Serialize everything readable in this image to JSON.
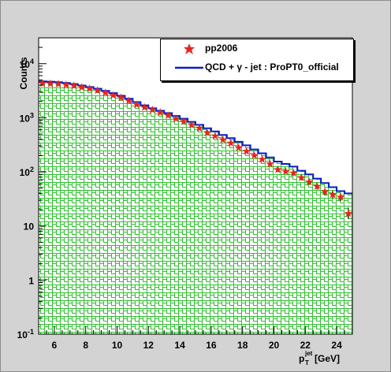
{
  "chart_data": {
    "type": "line",
    "ylabel": "Counts",
    "ylim": [
      0.1,
      30000
    ],
    "yscale": "log",
    "xlim": [
      5,
      25
    ],
    "grid": false,
    "legend_position": "top-right",
    "x_ticks": [
      "6",
      "8",
      "10",
      "12",
      "14",
      "16",
      "18",
      "20",
      "22",
      "24"
    ],
    "y_ticks": [
      {
        "base": "10",
        "exp": "4",
        "value": 10000
      },
      {
        "base": "10",
        "exp": "3",
        "value": 1000
      },
      {
        "base": "10",
        "exp": "2",
        "value": 100
      },
      {
        "base": "10",
        "exp": "",
        "value": 10
      },
      {
        "base": "1",
        "exp": "",
        "value": 1
      },
      {
        "base": "10",
        "exp": "-1",
        "value": 0.1
      }
    ],
    "series": [
      {
        "name": "pp2006",
        "style": "markers",
        "color": "#e8241f",
        "x": [
          5.25,
          5.75,
          6.25,
          6.75,
          7.25,
          7.75,
          8.25,
          8.75,
          9.25,
          9.75,
          10.25,
          10.75,
          11.25,
          11.75,
          12.25,
          12.75,
          13.25,
          13.75,
          14.25,
          14.75,
          15.25,
          15.75,
          16.25,
          16.75,
          17.25,
          17.75,
          18.25,
          18.75,
          19.25,
          19.75,
          20.25,
          20.75,
          21.25,
          21.75,
          22.25,
          22.75,
          23.25,
          23.75,
          24.25,
          24.75
        ],
        "y": [
          4300,
          4250,
          4200,
          4050,
          3900,
          3650,
          3450,
          3200,
          2900,
          2600,
          2350,
          2050,
          1750,
          1550,
          1400,
          1250,
          1100,
          960,
          850,
          740,
          640,
          530,
          460,
          390,
          340,
          280,
          240,
          200,
          170,
          140,
          110,
          102,
          95,
          78,
          65,
          54,
          43,
          38,
          34,
          17
        ]
      },
      {
        "name": "QCD + γ - jet : ProPT0_official",
        "style": "step",
        "color": "#0b1bc7",
        "x": [
          5,
          5.5,
          6,
          6.5,
          7,
          7.5,
          8,
          8.5,
          9,
          9.5,
          10,
          10.5,
          11,
          11.5,
          12,
          12.5,
          13,
          13.5,
          14,
          14.5,
          15,
          15.5,
          16,
          16.5,
          17,
          17.5,
          18,
          18.5,
          19,
          19.5,
          20,
          20.5,
          21,
          21.5,
          22,
          22.5,
          23,
          23.5,
          24,
          24.5
        ],
        "y": [
          4700,
          4650,
          4550,
          4400,
          4200,
          3950,
          3700,
          3450,
          3150,
          2850,
          2550,
          2250,
          1950,
          1700,
          1500,
          1350,
          1220,
          1080,
          960,
          840,
          740,
          640,
          560,
          480,
          420,
          360,
          310,
          260,
          220,
          185,
          155,
          140,
          125,
          105,
          90,
          75,
          62,
          52,
          44,
          40
        ]
      }
    ],
    "xlabel_main": "p",
    "xlabel_sup": "jet",
    "xlabel_sub": "T",
    "xlabel_unit": " [GeV]",
    "legend_entries": [
      "pp2006",
      "QCD + γ - jet : ProPT0_official"
    ]
  }
}
